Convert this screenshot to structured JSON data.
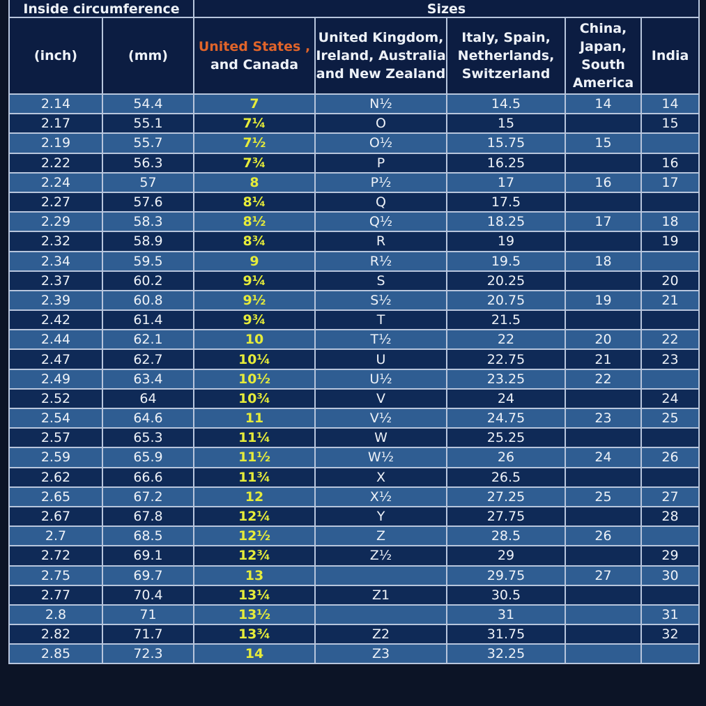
{
  "header": {
    "group_circumference": "Inside circumference",
    "group_sizes": "Sizes"
  },
  "columns": {
    "inch": "(inch)",
    "mm": "(mm)",
    "us_line1": "United States ,",
    "us_line2": "and Canada",
    "uk": "United Kingdom, Ireland, Australia and New Zealand",
    "eu": "Italy, Spain, Netherlands, Switzerland",
    "asia": "China, Japan, South America",
    "india": "India"
  },
  "colors": {
    "light_row": "#2f5d92",
    "dark_row": "#0f2a57",
    "header_bg": "#0c1d42",
    "us_value": "#e6ec3a",
    "us_header": "#e0642a",
    "grid_line": "#b8c6dd"
  },
  "rows": [
    {
      "inch": "2.14",
      "mm": "54.4",
      "us": "7",
      "uk": "N½",
      "eu": "14.5",
      "asia": "14",
      "india": "14"
    },
    {
      "inch": "2.17",
      "mm": "55.1",
      "us": "7¼",
      "uk": "O",
      "eu": "15",
      "asia": "",
      "india": "15"
    },
    {
      "inch": "2.19",
      "mm": "55.7",
      "us": "7½",
      "uk": "O½",
      "eu": "15.75",
      "asia": "15",
      "india": ""
    },
    {
      "inch": "2.22",
      "mm": "56.3",
      "us": "7¾",
      "uk": "P",
      "eu": "16.25",
      "asia": "",
      "india": "16"
    },
    {
      "inch": "2.24",
      "mm": "57",
      "us": "8",
      "uk": "P½",
      "eu": "17",
      "asia": "16",
      "india": "17"
    },
    {
      "inch": "2.27",
      "mm": "57.6",
      "us": "8¼",
      "uk": "Q",
      "eu": "17.5",
      "asia": "",
      "india": ""
    },
    {
      "inch": "2.29",
      "mm": "58.3",
      "us": "8½",
      "uk": "Q½",
      "eu": "18.25",
      "asia": "17",
      "india": "18"
    },
    {
      "inch": "2.32",
      "mm": "58.9",
      "us": "8¾",
      "uk": "R",
      "eu": "19",
      "asia": "",
      "india": "19"
    },
    {
      "inch": "2.34",
      "mm": "59.5",
      "us": "9",
      "uk": "R½",
      "eu": "19.5",
      "asia": "18",
      "india": ""
    },
    {
      "inch": "2.37",
      "mm": "60.2",
      "us": "9¼",
      "uk": "S",
      "eu": "20.25",
      "asia": "",
      "india": "20"
    },
    {
      "inch": "2.39",
      "mm": "60.8",
      "us": "9½",
      "uk": "S½",
      "eu": "20.75",
      "asia": "19",
      "india": "21"
    },
    {
      "inch": "2.42",
      "mm": "61.4",
      "us": "9¾",
      "uk": "T",
      "eu": "21.5",
      "asia": "",
      "india": ""
    },
    {
      "inch": "2.44",
      "mm": "62.1",
      "us": "10",
      "uk": "T½",
      "eu": "22",
      "asia": "20",
      "india": "22"
    },
    {
      "inch": "2.47",
      "mm": "62.7",
      "us": "10¼",
      "uk": "U",
      "eu": "22.75",
      "asia": "21",
      "india": "23"
    },
    {
      "inch": "2.49",
      "mm": "63.4",
      "us": "10½",
      "uk": "U½",
      "eu": "23.25",
      "asia": "22",
      "india": ""
    },
    {
      "inch": "2.52",
      "mm": "64",
      "us": "10¾",
      "uk": "V",
      "eu": "24",
      "asia": "",
      "india": "24"
    },
    {
      "inch": "2.54",
      "mm": "64.6",
      "us": "11",
      "uk": "V½",
      "eu": "24.75",
      "asia": "23",
      "india": "25"
    },
    {
      "inch": "2.57",
      "mm": "65.3",
      "us": "11¼",
      "uk": "W",
      "eu": "25.25",
      "asia": "",
      "india": ""
    },
    {
      "inch": "2.59",
      "mm": "65.9",
      "us": "11½",
      "uk": "W½",
      "eu": "26",
      "asia": "24",
      "india": "26"
    },
    {
      "inch": "2.62",
      "mm": "66.6",
      "us": "11¾",
      "uk": "X",
      "eu": "26.5",
      "asia": "",
      "india": ""
    },
    {
      "inch": "2.65",
      "mm": "67.2",
      "us": "12",
      "uk": "X½",
      "eu": "27.25",
      "asia": "25",
      "india": "27"
    },
    {
      "inch": "2.67",
      "mm": "67.8",
      "us": "12¼",
      "uk": "Y",
      "eu": "27.75",
      "asia": "",
      "india": "28"
    },
    {
      "inch": "2.7",
      "mm": "68.5",
      "us": "12½",
      "uk": "Z",
      "eu": "28.5",
      "asia": "26",
      "india": ""
    },
    {
      "inch": "2.72",
      "mm": "69.1",
      "us": "12¾",
      "uk": "Z½",
      "eu": "29",
      "asia": "",
      "india": "29"
    },
    {
      "inch": "2.75",
      "mm": "69.7",
      "us": "13",
      "uk": "",
      "eu": "29.75",
      "asia": "27",
      "india": "30"
    },
    {
      "inch": "2.77",
      "mm": "70.4",
      "us": "13¼",
      "uk": "Z1",
      "eu": "30.5",
      "asia": "",
      "india": ""
    },
    {
      "inch": "2.8",
      "mm": "71",
      "us": "13½",
      "uk": "",
      "eu": "31",
      "asia": "",
      "india": "31"
    },
    {
      "inch": "2.82",
      "mm": "71.7",
      "us": "13¾",
      "uk": "Z2",
      "eu": "31.75",
      "asia": "",
      "india": "32"
    },
    {
      "inch": "2.85",
      "mm": "72.3",
      "us": "14",
      "uk": "Z3",
      "eu": "32.25",
      "asia": "",
      "india": ""
    }
  ]
}
